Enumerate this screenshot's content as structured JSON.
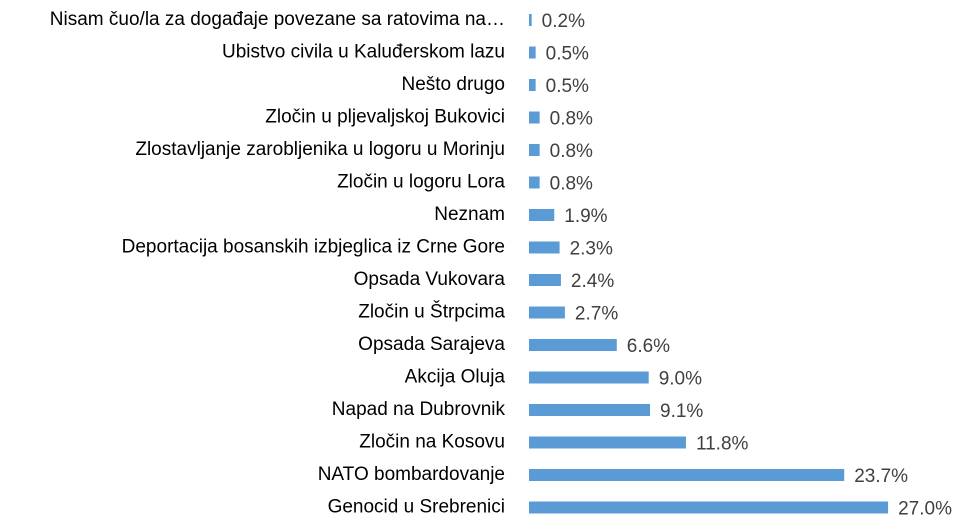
{
  "chart_data": {
    "type": "hbar",
    "color": "#5b9bd5",
    "categories": [
      "Nisam čuo/la za događaje povezane sa ratovima na…",
      "Ubistvo civila u Kaluđerskom lazu",
      "Nešto drugo",
      "Zločin u pljevaljskoj Bukovici",
      "Zlostavljanje zarobljenika u logoru u Morinju",
      "Zločin u logoru Lora",
      "Neznam",
      "Deportacija bosanskih izbjeglica iz Crne Gore",
      "Opsada Vukovara",
      "Zločin u Štrpcima",
      "Opsada Sarajeva",
      "Akcija Oluja",
      "Napad na Dubrovnik",
      "Zločin na Kosovu",
      "NATO bombardovanje",
      "Genocid u Srebrenici"
    ],
    "values": [
      0.2,
      0.5,
      0.5,
      0.8,
      0.8,
      0.8,
      1.9,
      2.3,
      2.4,
      2.7,
      6.6,
      9.0,
      9.1,
      11.8,
      23.7,
      27.0
    ],
    "value_labels": [
      "0.2%",
      "0.5%",
      "0.5%",
      "0.8%",
      "0.8%",
      "0.8%",
      "1.9%",
      "2.3%",
      "2.4%",
      "2.7%",
      "6.6%",
      "9.0%",
      "9.1%",
      "11.8%",
      "23.7%",
      "27.0%"
    ]
  }
}
